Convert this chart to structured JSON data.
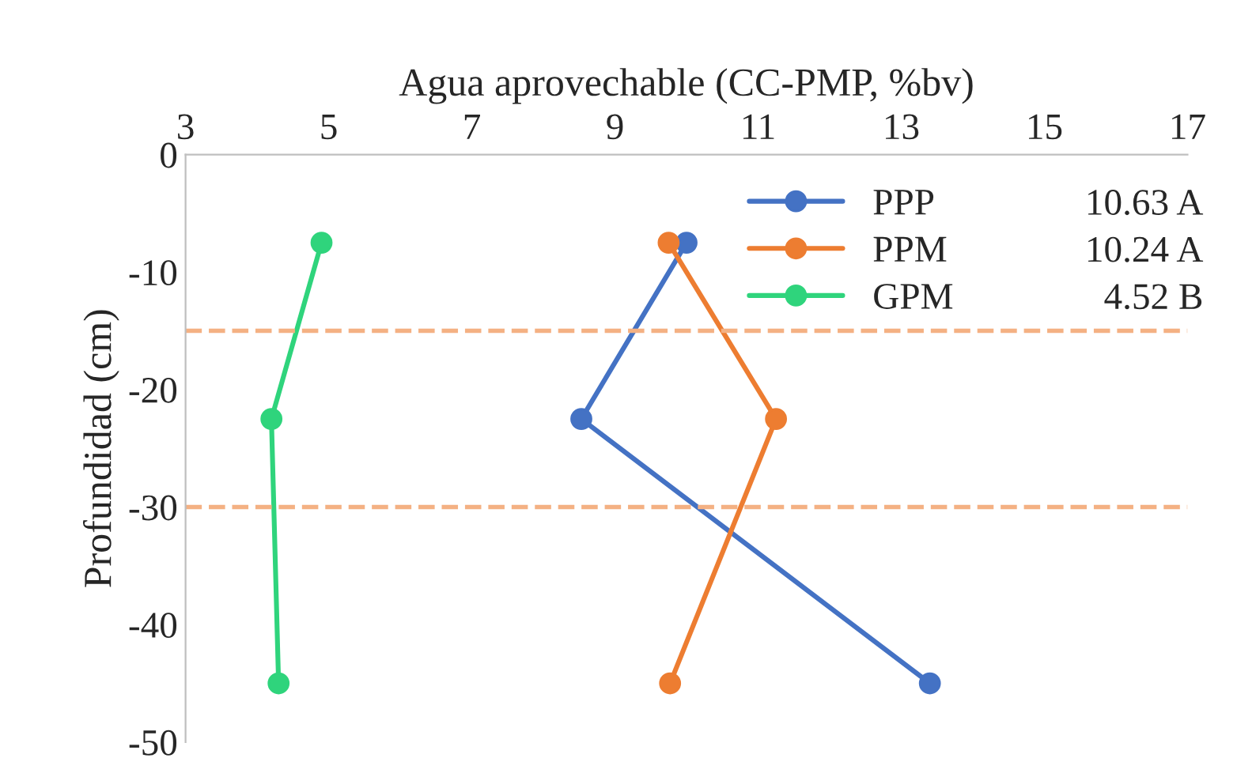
{
  "chart_data": {
    "type": "line",
    "xlabel": "Agua aprovechable (CC-PMP, %bv)",
    "ylabel": "Profundidad (cm)",
    "xlim": [
      3,
      17
    ],
    "xticks": [
      3,
      5,
      7,
      9,
      11,
      13,
      15,
      17
    ],
    "ylim": [
      -50,
      0
    ],
    "yticks": [
      0,
      -10,
      -20,
      -30,
      -40,
      -50
    ],
    "series": [
      {
        "name": "PPP",
        "color": "#4472c4",
        "x": [
          10.0,
          8.53,
          13.4
        ],
        "values": [
          -7.5,
          -22.5,
          -45
        ]
      },
      {
        "name": "PPM",
        "color": "#ed7d31",
        "x": [
          9.75,
          11.25,
          9.77
        ],
        "values": [
          -7.5,
          -22.5,
          -45
        ]
      },
      {
        "name": "GPM",
        "color": "#2fd47c",
        "x": [
          4.9,
          4.2,
          4.3
        ],
        "values": [
          -7.5,
          -22.5,
          -45
        ]
      }
    ],
    "annotations": [
      "10.63 A",
      "10.24 A",
      "4.52 B"
    ],
    "ref_lines": [
      {
        "axis": "y",
        "value": -15,
        "color": "#f4b183",
        "line_style": "dashed"
      },
      {
        "axis": "y",
        "value": -30,
        "color": "#f4b183",
        "line_style": "dashed"
      }
    ],
    "marker": "circle",
    "line_style": "solid",
    "legend": "top right",
    "grid": false
  }
}
